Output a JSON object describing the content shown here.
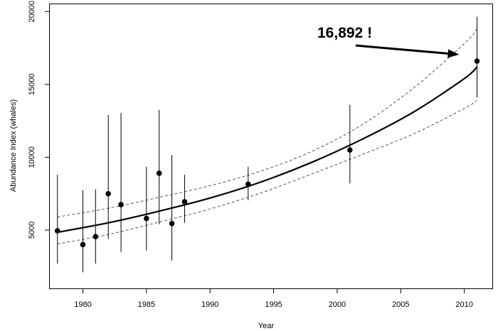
{
  "chart_data": {
    "type": "scatter",
    "title": "",
    "xlabel": "Year",
    "ylabel": "Abundance Index (whales)",
    "xlim": [
      1977.4,
      2012.2
    ],
    "ylim": [
      1000,
      20500
    ],
    "xticks": [
      1980,
      1985,
      1990,
      1995,
      2000,
      2005,
      2010
    ],
    "yticks": [
      5000,
      10000,
      15000,
      20000
    ],
    "xtick_labels": [
      "1980",
      "1985",
      "1990",
      "1995",
      "2000",
      "2005",
      "2010"
    ],
    "ytick_labels": [
      "5000",
      "10000",
      "15000",
      "20000"
    ],
    "grid": false,
    "legend": "none",
    "series": [
      {
        "kind": "points-with-error-bars",
        "x": [
          1978,
          1980,
          1981,
          1982,
          1983,
          1985,
          1986,
          1987,
          1988,
          1993,
          2001,
          2011
        ],
        "y": [
          4950,
          4000,
          4550,
          7500,
          6750,
          5800,
          8900,
          5450,
          6950,
          8150,
          10500,
          16600
        ],
        "lower": [
          2700,
          2100,
          2700,
          4400,
          3500,
          3600,
          5400,
          2900,
          5500,
          7050,
          8200,
          14100
        ],
        "upper": [
          8800,
          7750,
          7800,
          12900,
          13050,
          9350,
          13250,
          10150,
          8800,
          9350,
          13600,
          19650
        ]
      },
      {
        "kind": "fit-line",
        "style": "solid",
        "x": [
          1978,
          1982,
          1986,
          1990,
          1994,
          1998,
          2002,
          2006,
          2010,
          2011
        ],
        "y": [
          4850,
          5500,
          6300,
          7200,
          8300,
          9650,
          11250,
          13100,
          15400,
          16200
        ]
      },
      {
        "kind": "upper-confidence",
        "style": "dashed",
        "x": [
          1978,
          1982,
          1986,
          1990,
          1994,
          1998,
          2002,
          2006,
          2010,
          2011
        ],
        "y": [
          5900,
          6500,
          7250,
          8050,
          9050,
          10400,
          12250,
          14750,
          17800,
          18800
        ]
      },
      {
        "kind": "lower-confidence",
        "style": "dashed",
        "x": [
          1978,
          1982,
          1986,
          1990,
          1994,
          1998,
          2002,
          2006,
          2010,
          2011
        ],
        "y": [
          4050,
          4700,
          5550,
          6450,
          7550,
          8850,
          10200,
          11600,
          13350,
          13900
        ]
      }
    ],
    "annotations": [
      {
        "text": "16,892 !",
        "points_to": [
          2009.6,
          17050
        ]
      }
    ]
  }
}
